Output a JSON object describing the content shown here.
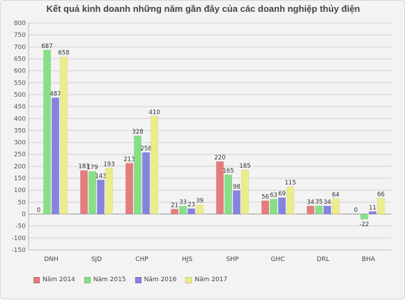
{
  "chart_data": {
    "type": "bar",
    "title": "Kết quả kinh doanh những năm gần đây của các doanh nghiệp thủy điện",
    "categories": [
      "DNH",
      "SJD",
      "CHP",
      "HJS",
      "SHP",
      "GHC",
      "DRL",
      "BHA"
    ],
    "series": [
      {
        "name": "Năm 2014",
        "color": "#e57d7d",
        "values": [
          0,
          183,
          213,
          21,
          220,
          56,
          34,
          0
        ]
      },
      {
        "name": "Năm 2015",
        "color": "#86e086",
        "values": [
          687,
          179,
          328,
          33,
          165,
          63,
          35,
          -22
        ]
      },
      {
        "name": "Năm 2016",
        "color": "#8484e0",
        "values": [
          487,
          143,
          258,
          23,
          98,
          69,
          34,
          11
        ]
      },
      {
        "name": "Năm 2017",
        "color": "#ecec8a",
        "values": [
          658,
          193,
          410,
          39,
          185,
          115,
          64,
          66
        ]
      }
    ],
    "ylim": [
      -150,
      800
    ],
    "yticks": [
      -150,
      -100,
      -50,
      0,
      50,
      100,
      150,
      200,
      250,
      300,
      350,
      400,
      450,
      500,
      550,
      600,
      650,
      700,
      750,
      800
    ],
    "grid": true,
    "legend_position": "bottom-left"
  }
}
